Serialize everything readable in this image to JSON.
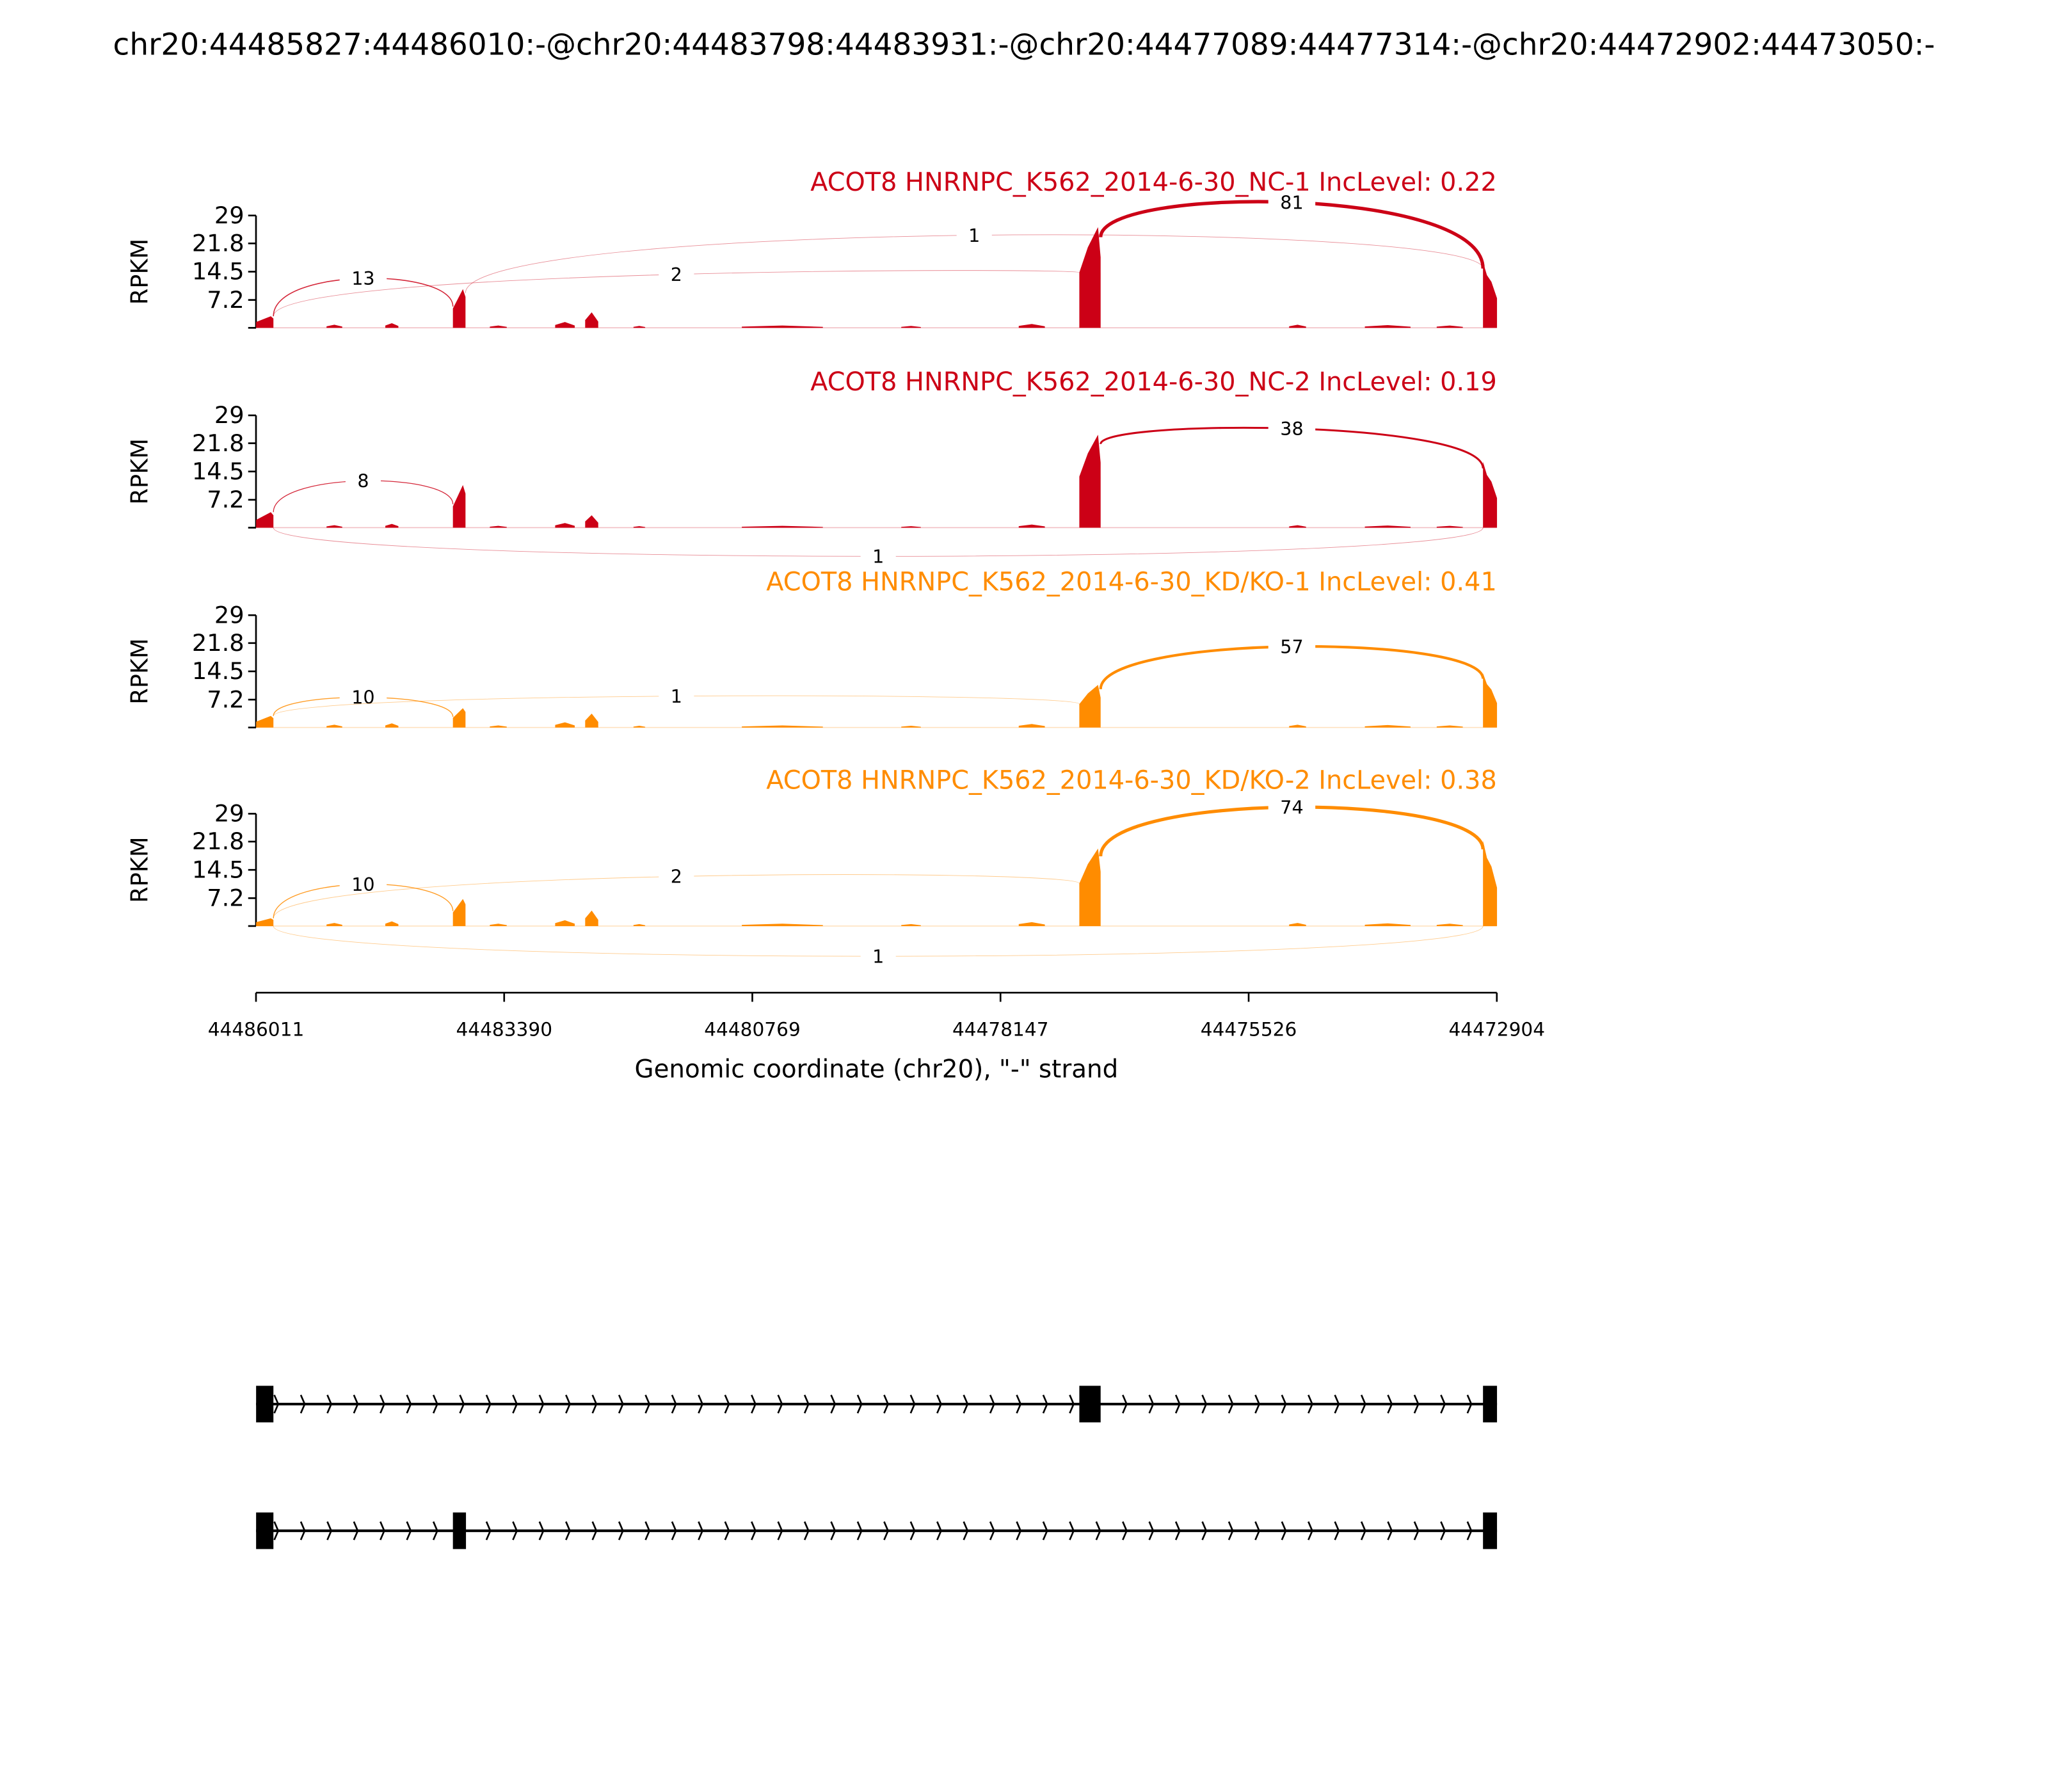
{
  "chart_data": {
    "type": "sashimi",
    "title": "chr20:44485827:44486010:-@chr20:44483798:44483931:-@chr20:44477089:44477314:-@chr20:44472902:44473050:-",
    "ylabel": "RPKM",
    "xlabel": "Genomic coordinate (chr20), \"-\" strand",
    "xlim": [
      44486011,
      44472904
    ],
    "ylim": [
      0,
      29
    ],
    "y_ticks": [
      "7.2",
      "14.5",
      "21.8",
      "29"
    ],
    "y_tick_values": [
      7.2,
      14.5,
      21.8,
      29
    ],
    "x_ticks": [
      "44486011",
      "44483390",
      "44480769",
      "44478147",
      "44475526",
      "44472904"
    ],
    "colors": {
      "control": "#cc0016",
      "treatment": "#ff8c00",
      "gene": "#000000"
    },
    "exons": [
      [
        44486010,
        44485827
      ],
      [
        44483931,
        44483798
      ],
      [
        44477314,
        44477089
      ],
      [
        44473050,
        44472902
      ]
    ],
    "intronic_bumps": [
      [
        44485266,
        44485100,
        0.8
      ],
      [
        44484645,
        44484507,
        1.2
      ],
      [
        44483541,
        44483362,
        0.6
      ],
      [
        44482851,
        44482644,
        1.5
      ],
      [
        44482534,
        44482396,
        4.0
      ],
      [
        44482024,
        44481900,
        0.5
      ],
      [
        44480879,
        44480023,
        0.6
      ],
      [
        44479195,
        44478988,
        0.5
      ],
      [
        44477954,
        44477678,
        1.0
      ],
      [
        44475098,
        44474919,
        0.8
      ],
      [
        44474298,
        44473815,
        0.7
      ],
      [
        44473539,
        44473263,
        0.6
      ]
    ],
    "samples": [
      {
        "label": "ACOT8 HNRNPC_K562_2014-6-30_NC-1 IncLevel: 0.22",
        "group": "control",
        "exon_rpkm": [
          3,
          10,
          26,
          17
        ],
        "bump_scale": 1.0,
        "junctions": [
          {
            "from_exon": 0,
            "to_exon": 1,
            "count": "13",
            "side": "above",
            "apex": 12.8
          },
          {
            "from_exon": 0,
            "to_exon": 2,
            "count": "2",
            "side": "above",
            "apex": 13.8
          },
          {
            "from_exon": 1,
            "to_exon": 3,
            "count": "1",
            "side": "above",
            "apex": 23.9
          },
          {
            "from_exon": 2,
            "to_exon": 3,
            "count": "81",
            "side": "above",
            "apex": 32.4
          }
        ]
      },
      {
        "label": "ACOT8 HNRNPC_K562_2014-6-30_NC-2 IncLevel: 0.19",
        "group": "control",
        "exon_rpkm": [
          4,
          11,
          24,
          17
        ],
        "bump_scale": 0.8,
        "junctions": [
          {
            "from_exon": 0,
            "to_exon": 1,
            "count": "8",
            "side": "above",
            "apex": 12.1
          },
          {
            "from_exon": 2,
            "to_exon": 3,
            "count": "38",
            "side": "above",
            "apex": 25.6
          },
          {
            "from_exon": 0,
            "to_exon": 3,
            "count": "1",
            "side": "below",
            "apex": -7.4
          }
        ]
      },
      {
        "label": "ACOT8 HNRNPC_K562_2014-6-30_KD/KO-1 IncLevel: 0.41",
        "group": "treatment",
        "exon_rpkm": [
          3,
          5,
          11,
          14
        ],
        "bump_scale": 0.9,
        "junctions": [
          {
            "from_exon": 0,
            "to_exon": 1,
            "count": "10",
            "side": "above",
            "apex": 7.8
          },
          {
            "from_exon": 0,
            "to_exon": 2,
            "count": "1",
            "side": "above",
            "apex": 8.1
          },
          {
            "from_exon": 2,
            "to_exon": 3,
            "count": "57",
            "side": "above",
            "apex": 20.9
          }
        ]
      },
      {
        "label": "ACOT8 HNRNPC_K562_2014-6-30_KD/KO-2 IncLevel: 0.38",
        "group": "treatment",
        "exon_rpkm": [
          2,
          7,
          20,
          22
        ],
        "bump_scale": 1.0,
        "junctions": [
          {
            "from_exon": 0,
            "to_exon": 1,
            "count": "10",
            "side": "above",
            "apex": 10.8
          },
          {
            "from_exon": 0,
            "to_exon": 2,
            "count": "2",
            "side": "above",
            "apex": 12.8
          },
          {
            "from_exon": 2,
            "to_exon": 3,
            "count": "74",
            "side": "above",
            "apex": 30.7
          },
          {
            "from_exon": 0,
            "to_exon": 3,
            "count": "1",
            "side": "below",
            "apex": -7.8
          }
        ]
      }
    ],
    "isoforms": [
      {
        "exons": [
          0,
          2,
          3
        ]
      },
      {
        "exons": [
          0,
          1,
          3
        ]
      }
    ]
  }
}
